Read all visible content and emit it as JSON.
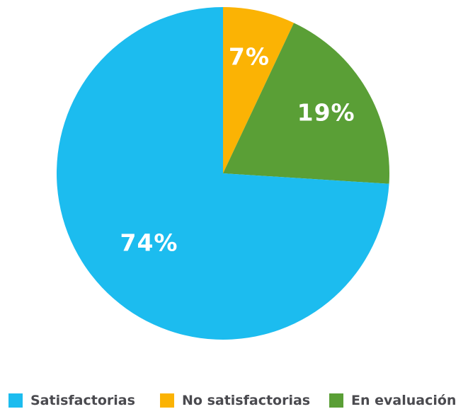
{
  "chart_data": {
    "type": "pie",
    "title": "",
    "slices": [
      {
        "label": "Satisfactorias",
        "value": 74,
        "value_label": "74%",
        "color": "#1cbcef"
      },
      {
        "label": "No satisfactorias",
        "value": 7,
        "value_label": "7%",
        "color": "#fbb304"
      },
      {
        "label": "En evaluación",
        "value": 19,
        "value_label": "19%",
        "color": "#5a9f36"
      }
    ],
    "draw_order": [
      1,
      2,
      0
    ],
    "start_angle": "12 o'clock",
    "direction": "clockwise",
    "legend_position": "bottom"
  }
}
